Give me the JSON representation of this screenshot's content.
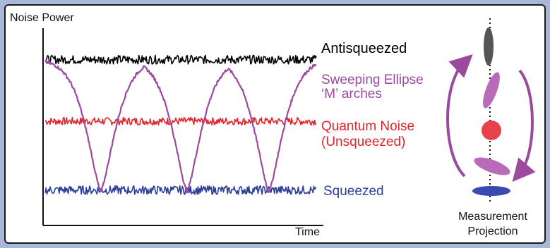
{
  "colors": {
    "background": "#a9b8d9",
    "antisqueezed": "#000000",
    "sweeping": "#9b4a9e",
    "quantum": "#e4242a",
    "squeezed": "#2c3e9a",
    "ellipse_vertical": "#555555",
    "ellipse_tilted": "#b96ab8",
    "dot": "#e8424a",
    "ellipse_flat": "#3a4ab0",
    "arrow": "#9b4a9e"
  },
  "chart_data": {
    "type": "line",
    "title": "",
    "ylabel": "Noise Power",
    "xlabel": "Time",
    "xlim": [
      0,
      1
    ],
    "ylim": [
      0,
      1
    ],
    "grid": false,
    "series": [
      {
        "name": "Antisqueezed",
        "color": "#000000",
        "level": 0.92,
        "noise": 0.015
      },
      {
        "name": "Sweeping Ellipse\n‘M’ arches",
        "color": "#9b4a9e",
        "kind": "arches",
        "dip_x": [
          0.205,
          0.523,
          0.825
        ],
        "top": 0.92,
        "bottom": 0.02
      },
      {
        "name": "Quantum Noise\n(Unsqueezed)",
        "color": "#e4242a",
        "level": 0.5,
        "noise": 0.013
      },
      {
        "name": "Squeezed",
        "color": "#2c3e9a",
        "level": 0.03,
        "noise": 0.015
      }
    ],
    "legend_placement": "right"
  },
  "labels": {
    "antisqueezed": "Antisqueezed",
    "sweeping_1": "Sweeping Ellipse",
    "sweeping_2": "‘M’ arches",
    "quantum_1": "Quantum Noise",
    "quantum_2": "(Unsqueezed)",
    "squeezed": "Squeezed",
    "projection_1": "Measurement",
    "projection_2": "Projection"
  }
}
